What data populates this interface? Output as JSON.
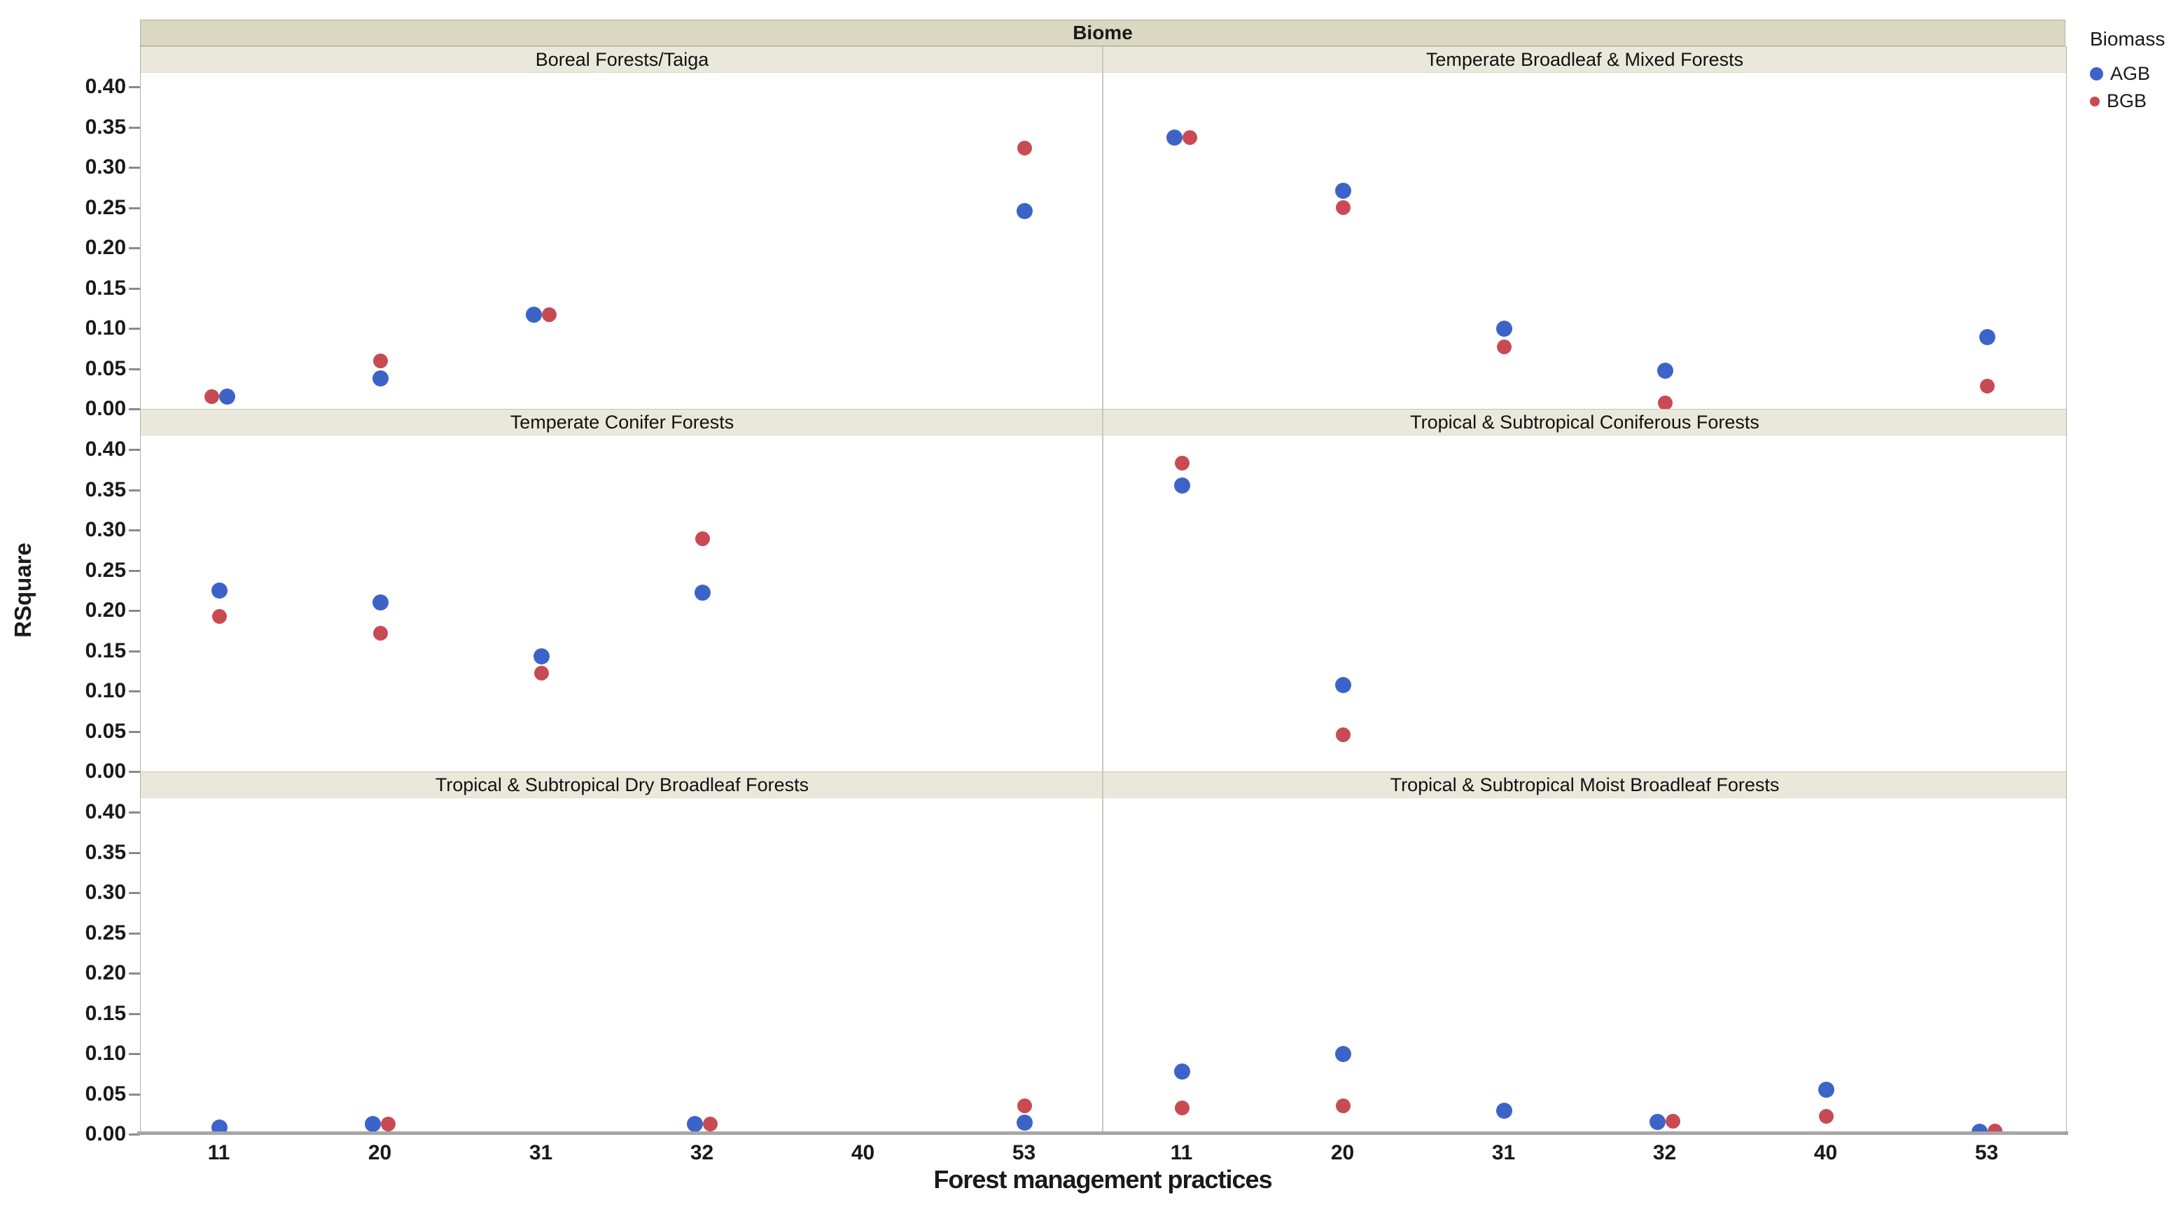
{
  "colors": {
    "agb": "#3C63C7",
    "bgb": "#C84A53",
    "facet_band": "#dbd8c2",
    "panel_title_band": "#eae8db",
    "axis_line": "#a6a6a6"
  },
  "legend": {
    "title": "Biomass",
    "items": [
      {
        "label": "AGB",
        "color": "#3C63C7"
      },
      {
        "label": "BGB",
        "color": "#C84A53"
      }
    ]
  },
  "chart_data": {
    "type": "scatter",
    "facet_header": "Biome",
    "xlabel": "Forest management practices",
    "ylabel": "RSquare",
    "x_categories": [
      "11",
      "20",
      "31",
      "32",
      "40",
      "53"
    ],
    "ylim": [
      0.0,
      0.4
    ],
    "ytick_labels": [
      "0.40",
      "0.35",
      "0.30",
      "0.25",
      "0.20",
      "0.15",
      "0.10",
      "0.05",
      "0.00"
    ],
    "grid": "off",
    "legend_position": "top-right",
    "panels": [
      {
        "title": "Boreal Forests/Taiga",
        "row": 0,
        "col": 0,
        "points": [
          {
            "x": "11",
            "AGB": 0.015,
            "BGB": 0.015,
            "layout": "side-rb"
          },
          {
            "x": "20",
            "AGB": 0.038,
            "BGB": 0.06,
            "layout": "stack"
          },
          {
            "x": "31",
            "AGB": 0.117,
            "BGB": 0.117,
            "layout": "side-br"
          },
          {
            "x": "53",
            "AGB": 0.246,
            "BGB": 0.324,
            "layout": "stack"
          }
        ]
      },
      {
        "title": "Temperate Broadleaf & Mixed Forests",
        "row": 0,
        "col": 1,
        "points": [
          {
            "x": "11",
            "AGB": 0.337,
            "BGB": 0.337,
            "layout": "side-br"
          },
          {
            "x": "20",
            "AGB": 0.271,
            "BGB": 0.25,
            "layout": "stack"
          },
          {
            "x": "31",
            "AGB": 0.1,
            "BGB": 0.077,
            "layout": "stack"
          },
          {
            "x": "32",
            "AGB": 0.047,
            "BGB": 0.007,
            "layout": "stack"
          },
          {
            "x": "53",
            "AGB": 0.089,
            "BGB": 0.028,
            "layout": "stack"
          }
        ]
      },
      {
        "title": "Temperate Conifer Forests",
        "row": 1,
        "col": 0,
        "points": [
          {
            "x": "11",
            "AGB": 0.225,
            "BGB": 0.193,
            "layout": "stack"
          },
          {
            "x": "20",
            "AGB": 0.21,
            "BGB": 0.172,
            "layout": "stack"
          },
          {
            "x": "31",
            "AGB": 0.143,
            "BGB": 0.122,
            "layout": "stack"
          },
          {
            "x": "32",
            "AGB": 0.222,
            "BGB": 0.289,
            "layout": "stack"
          }
        ]
      },
      {
        "title": "Tropical & Subtropical Coniferous Forests",
        "row": 1,
        "col": 1,
        "points": [
          {
            "x": "11",
            "AGB": 0.355,
            "BGB": 0.383,
            "layout": "stack"
          },
          {
            "x": "20",
            "AGB": 0.107,
            "BGB": 0.046,
            "layout": "stack"
          }
        ]
      },
      {
        "title": "Tropical & Subtropical Dry Broadleaf Forests",
        "row": 2,
        "col": 0,
        "points": [
          {
            "x": "11",
            "AGB": 0.008,
            "BGB": null,
            "layout": "stack"
          },
          {
            "x": "20",
            "AGB": 0.013,
            "BGB": 0.013,
            "layout": "side-br"
          },
          {
            "x": "32",
            "AGB": 0.013,
            "BGB": 0.013,
            "layout": "side-br"
          },
          {
            "x": "53",
            "AGB": 0.014,
            "BGB": 0.035,
            "layout": "stack"
          }
        ]
      },
      {
        "title": "Tropical & Subtropical Moist Broadleaf Forests",
        "row": 2,
        "col": 1,
        "points": [
          {
            "x": "11",
            "AGB": 0.078,
            "BGB": 0.033,
            "layout": "stack"
          },
          {
            "x": "20",
            "AGB": 0.1,
            "BGB": 0.035,
            "layout": "stack"
          },
          {
            "x": "31",
            "AGB": 0.029,
            "BGB": null,
            "layout": "stack"
          },
          {
            "x": "32",
            "AGB": 0.015,
            "BGB": 0.016,
            "layout": "side-br"
          },
          {
            "x": "40",
            "AGB": 0.055,
            "BGB": 0.022,
            "layout": "stack"
          },
          {
            "x": "53",
            "AGB": 0.003,
            "BGB": 0.004,
            "layout": "side-br"
          }
        ]
      }
    ]
  }
}
